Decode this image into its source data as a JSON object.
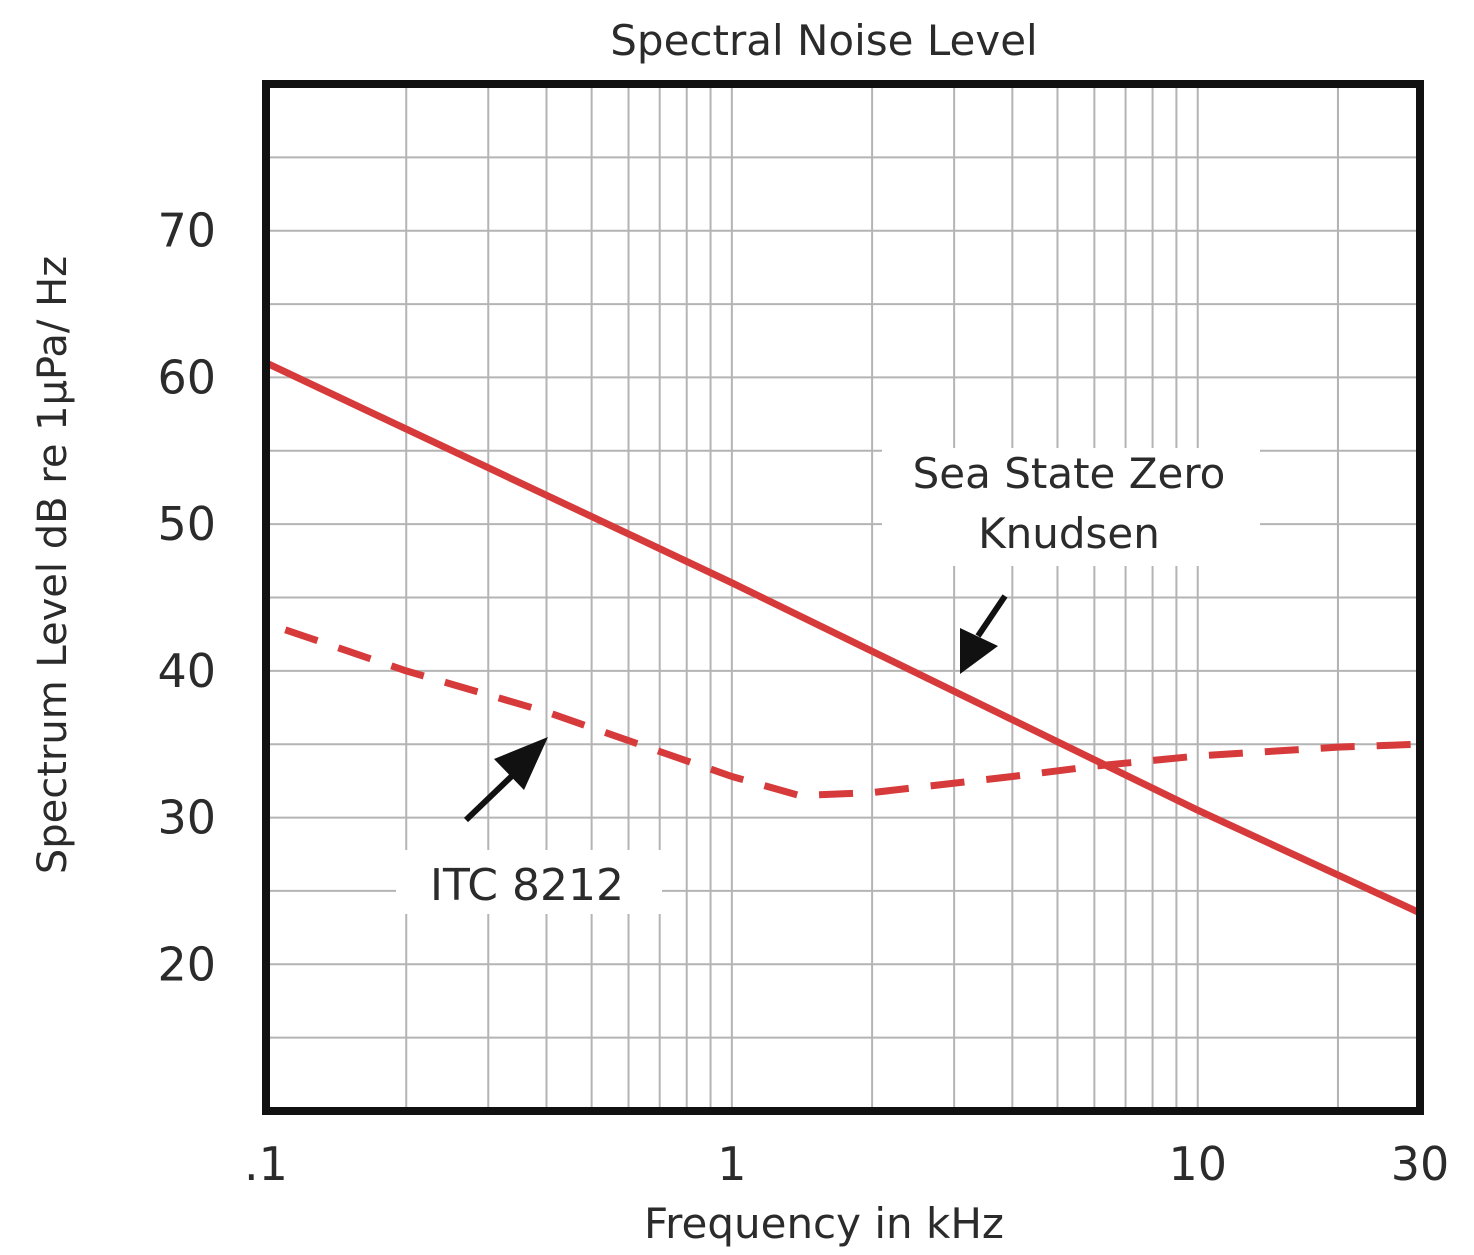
{
  "chart_data": {
    "type": "line",
    "title": "Spectral Noise Level",
    "xlabel": "Frequency in kHz",
    "ylabel": "Spectrum Level dB re 1µPa/ Hz",
    "x_scale": "log",
    "xlim": [
      0.1,
      30
    ],
    "ylim": [
      10,
      80
    ],
    "x_ticks": [
      {
        "value": 0.1,
        "label": ".1"
      },
      {
        "value": 1,
        "label": "1"
      },
      {
        "value": 10,
        "label": "10"
      },
      {
        "value": 30,
        "label": "30"
      }
    ],
    "y_ticks": [
      {
        "value": 20,
        "label": "20"
      },
      {
        "value": 30,
        "label": "30"
      },
      {
        "value": 40,
        "label": "40"
      },
      {
        "value": 50,
        "label": "50"
      },
      {
        "value": 60,
        "label": "60"
      },
      {
        "value": 70,
        "label": "70"
      }
    ],
    "grid": true,
    "series": [
      {
        "name": "Sea State Zero Knudsen",
        "style": "solid",
        "color": "#d63a3a",
        "x": [
          0.1,
          1,
          10,
          30
        ],
        "y": [
          61,
          46,
          30.5,
          23.5
        ]
      },
      {
        "name": "ITC 8212",
        "style": "dashed",
        "color": "#d63a3a",
        "x": [
          0.11,
          0.2,
          0.4,
          0.7,
          1.0,
          1.4,
          2,
          4,
          6,
          10,
          20,
          30
        ],
        "y": [
          42.8,
          40,
          37.2,
          34.5,
          32.8,
          31.5,
          31.7,
          32.8,
          33.5,
          34.2,
          34.8,
          35
        ]
      }
    ],
    "annotations": [
      {
        "text_lines": [
          "Sea State Zero",
          "Knudsen"
        ],
        "target_series": "Sea State Zero Knudsen"
      },
      {
        "text_lines": [
          "ITC 8212"
        ],
        "target_series": "ITC 8212"
      }
    ]
  }
}
